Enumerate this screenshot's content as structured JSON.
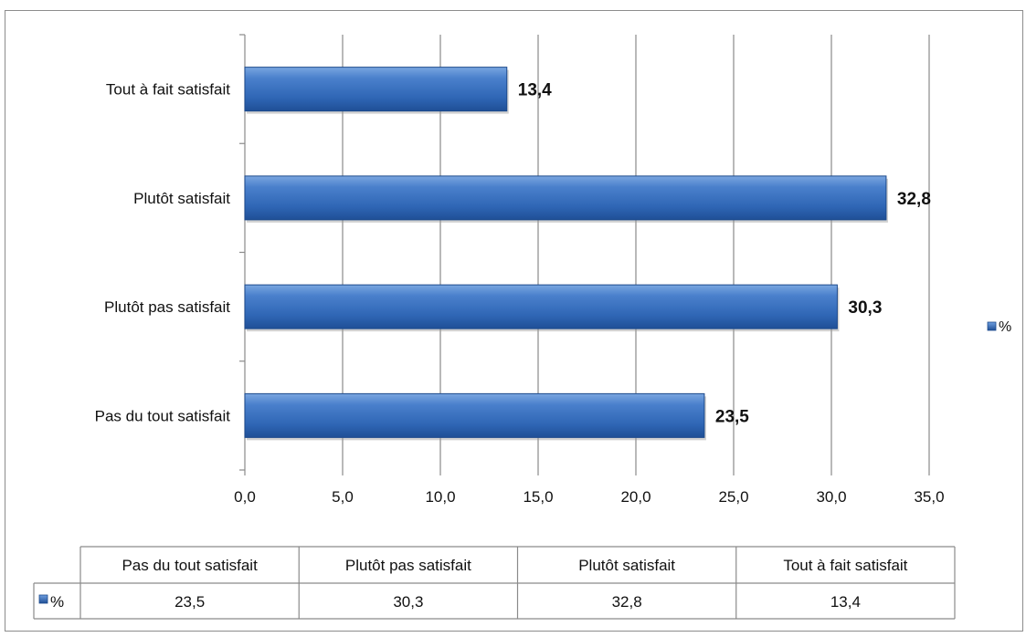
{
  "chart_data": {
    "type": "bar",
    "orientation": "horizontal",
    "categories": [
      "Pas du tout satisfait",
      "Plutôt pas satisfait",
      "Plutôt satisfait",
      "Tout à fait satisfait"
    ],
    "series": [
      {
        "name": "%",
        "values": [
          23.5,
          30.3,
          32.8,
          13.4
        ],
        "labels": [
          "23,5",
          "30,3",
          "32,8",
          "13,4"
        ],
        "color": "#3a73c4"
      }
    ],
    "x_ticks": [
      "0,0",
      "5,0",
      "10,0",
      "15,0",
      "20,0",
      "25,0",
      "30,0",
      "35,0"
    ],
    "xlim": [
      0,
      35
    ],
    "grid": true,
    "legend": {
      "position": "right",
      "entries": [
        "%"
      ]
    },
    "data_table": {
      "header": [
        "Pas du tout satisfait",
        "Plutôt pas satisfait",
        "Plutôt satisfait",
        "Tout à fait satisfait"
      ],
      "rows": [
        {
          "key": "%",
          "values": [
            "23,5",
            "30,3",
            "32,8",
            "13,4"
          ]
        }
      ]
    }
  }
}
